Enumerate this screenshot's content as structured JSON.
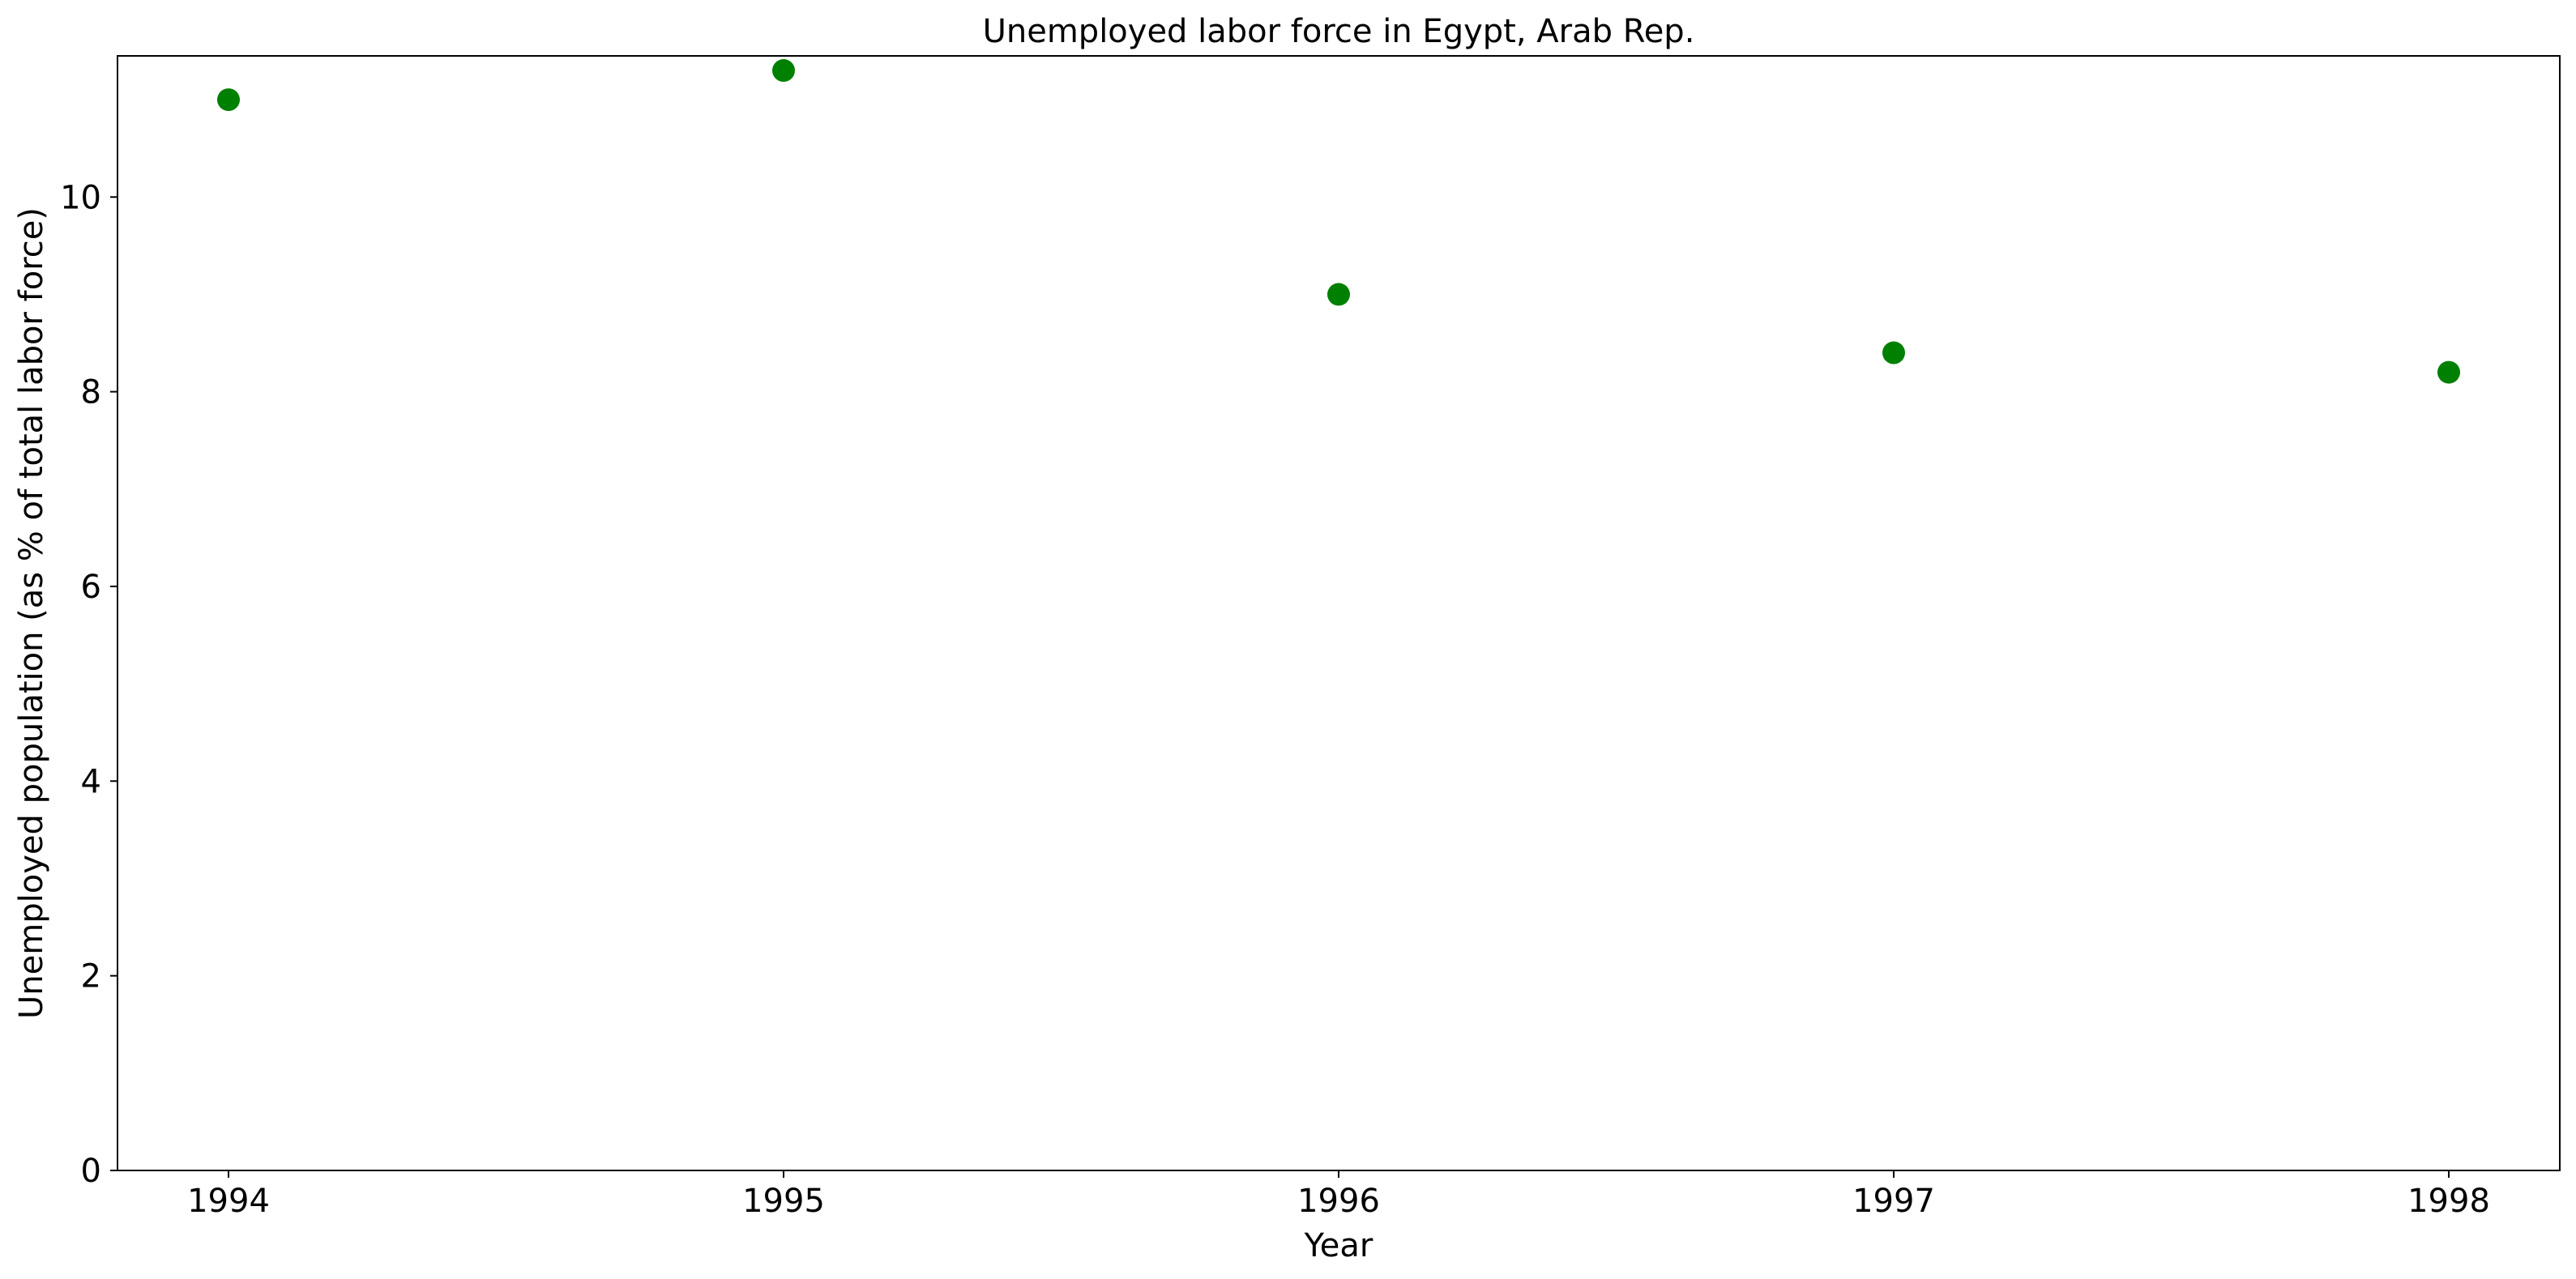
{
  "chart_data": {
    "type": "scatter",
    "title": "Unemployed labor force in Egypt, Arab Rep.",
    "xlabel": "Year",
    "ylabel": "Unemployed population (as % of total labor force)",
    "x": [
      1994,
      1995,
      1996,
      1997,
      1998
    ],
    "series": [
      {
        "values": [
          11.0,
          11.3,
          9.0,
          8.4,
          8.2
        ],
        "color": "#008000"
      }
    ],
    "xticks": [
      "1994",
      "1995",
      "1996",
      "1997",
      "1998"
    ],
    "yticks": [
      0,
      2,
      4,
      6,
      8,
      10
    ],
    "xlim": [
      1993.8,
      1998.2
    ],
    "ylim": [
      0,
      11.45
    ],
    "grid": false,
    "legend": "none"
  }
}
